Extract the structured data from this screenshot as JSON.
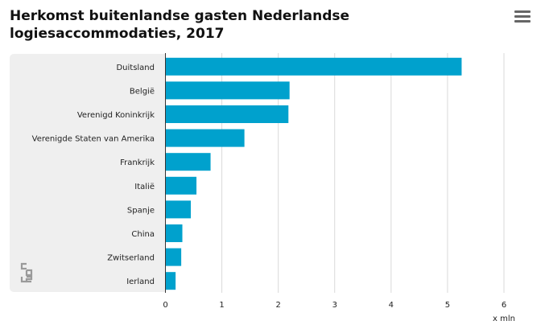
{
  "header": {
    "title": "Herkomst buitenlandse gasten Nederlandse logiesaccommodaties, 2017",
    "menu_icon": "hamburger-menu-icon"
  },
  "logo": {
    "icon": "cbs-logo-icon"
  },
  "chart_data": {
    "type": "bar",
    "orientation": "horizontal",
    "title": "Herkomst buitenlandse gasten Nederlandse logiesaccommodaties, 2017",
    "categories": [
      "Duitsland",
      "België",
      "Verenigd Koninkrijk",
      "Verenigde Staten van Amerika",
      "Frankrijk",
      "Italië",
      "Spanje",
      "China",
      "Zwitserland",
      "Ierland"
    ],
    "values": [
      5.25,
      2.2,
      2.18,
      1.4,
      0.8,
      0.55,
      0.45,
      0.3,
      0.28,
      0.18
    ],
    "xlim": [
      0,
      6
    ],
    "xticks": [
      "0",
      "1",
      "2",
      "3",
      "4",
      "5",
      "6"
    ],
    "unit": "x mln",
    "grid": true,
    "color": "#00a1cd"
  }
}
